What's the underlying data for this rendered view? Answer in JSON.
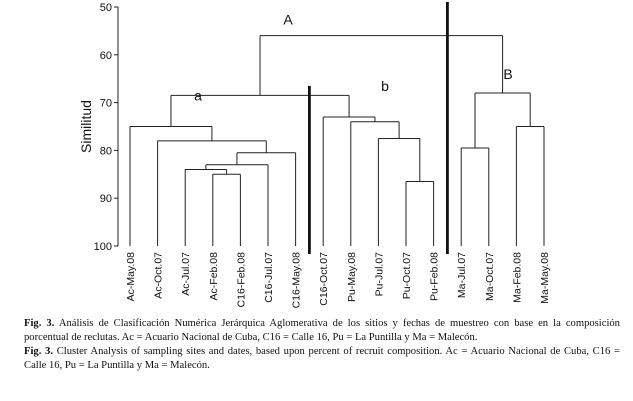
{
  "chart_data": {
    "type": "dendrogram",
    "ylabel": "Similitud",
    "ylim": [
      50,
      100
    ],
    "yticks": [
      50,
      60,
      70,
      80,
      90,
      100
    ],
    "leaves": [
      "Ac-May.08",
      "Ac-Oct.07",
      "Ac-Jul.07",
      "Ac-Feb.08",
      "C16-Feb.08",
      "C16-Jul.07",
      "C16-May.08",
      "C16-Oct.07",
      "Pu-May.08",
      "Pu-Jul.07",
      "Pu-Oct.07",
      "Pu-Feb.08",
      "Ma-Jul.07",
      "Ma-Oct.07",
      "Ma-Feb.08",
      "Ma-May.08"
    ],
    "merges": [
      {
        "id": "m1",
        "children": [
          "Ac-Feb.08",
          "C16-Feb.08"
        ],
        "similarity": 85.0
      },
      {
        "id": "m2",
        "children": [
          "Ac-Jul.07",
          "m1"
        ],
        "similarity": 84.0
      },
      {
        "id": "m3",
        "children": [
          "m2",
          "C16-Jul.07"
        ],
        "similarity": 83.0
      },
      {
        "id": "m4",
        "children": [
          "m3",
          "C16-May.08"
        ],
        "similarity": 80.5
      },
      {
        "id": "m5",
        "children": [
          "Ac-Oct.07",
          "m4"
        ],
        "similarity": 78.0
      },
      {
        "id": "m6",
        "children": [
          "Ac-May.08",
          "m5"
        ],
        "similarity": 75.0
      },
      {
        "id": "m7",
        "children": [
          "Pu-Oct.07",
          "Pu-Feb.08"
        ],
        "similarity": 86.5
      },
      {
        "id": "m8",
        "children": [
          "Pu-Jul.07",
          "m7"
        ],
        "similarity": 77.5
      },
      {
        "id": "m9",
        "children": [
          "Pu-May.08",
          "m8"
        ],
        "similarity": 74.0
      },
      {
        "id": "m10",
        "children": [
          "C16-Oct.07",
          "m9"
        ],
        "similarity": 73.0
      },
      {
        "id": "m11",
        "children": [
          "m6",
          "m10"
        ],
        "similarity": 68.5
      },
      {
        "id": "m12",
        "children": [
          "Ma-Jul.07",
          "Ma-Oct.07"
        ],
        "similarity": 79.5
      },
      {
        "id": "m13",
        "children": [
          "Ma-Feb.08",
          "Ma-May.08"
        ],
        "similarity": 75.0
      },
      {
        "id": "m14",
        "children": [
          "m12",
          "m13"
        ],
        "similarity": 68.0
      },
      {
        "id": "m15",
        "children": [
          "m11",
          "m14"
        ],
        "similarity": 56.0
      }
    ],
    "group_labels": [
      {
        "text": "A",
        "merge": "m15"
      },
      {
        "text": "B",
        "merge": "m14"
      },
      {
        "text": "a",
        "merge": "m6"
      },
      {
        "text": "b",
        "merge": "m10"
      }
    ]
  },
  "caption_es": {
    "label": "Fig. 3.",
    "text": "Análisis de Clasificación Numérica Jerárquica Aglomerativa de los sitios y fechas de muestreo con base en la composición porcentual de reclutas. Ac = Acuario Nacional de Cuba, C16 = Calle 16, Pu = La Puntilla y Ma = Malecón."
  },
  "caption_en": {
    "label": "Fig. 3.",
    "text": "Cluster Analysis of sampling sites and dates, based upon percent of recruit composition. Ac = Acuario Nacional de Cuba, C16 = Calle 16, Pu = La Puntilla y Ma = Malecón."
  }
}
